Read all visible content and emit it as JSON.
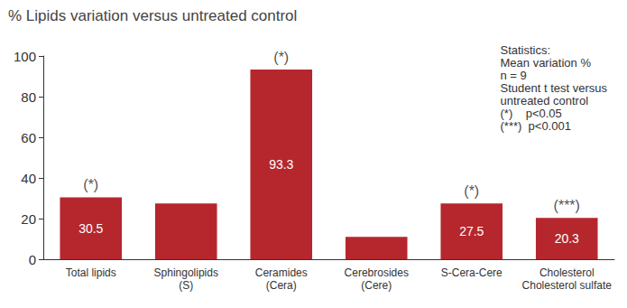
{
  "chart_data": {
    "type": "bar",
    "title": "% Lipids variation versus untreated control",
    "categories": [
      "Total lipids",
      "Sphingolipids\n(S)",
      "Ceramides\n(Cera)",
      "Cerebrosides\n(Cere)",
      "S-Cera-Cere",
      "Cholesterol\nCholesterol sulfate"
    ],
    "values": [
      30.5,
      27.5,
      93.3,
      11,
      27.5,
      20.3
    ],
    "value_labels": [
      "30.5",
      null,
      "93.3",
      null,
      "27.5",
      "20.3"
    ],
    "data_labels": true,
    "color": "#b5272d",
    "ylim": [
      0,
      100
    ],
    "yticks": [
      0,
      20,
      40,
      60,
      80,
      100
    ],
    "grid": false,
    "significance": [
      "(*)",
      null,
      "(*)",
      null,
      "(*)",
      "(***)"
    ],
    "statistics": [
      "Statistics:",
      "Mean variation %",
      "n = 9",
      "Student t test versus",
      "untreated control",
      "(*)    p<0.05",
      "(***)  p<0.001"
    ]
  }
}
